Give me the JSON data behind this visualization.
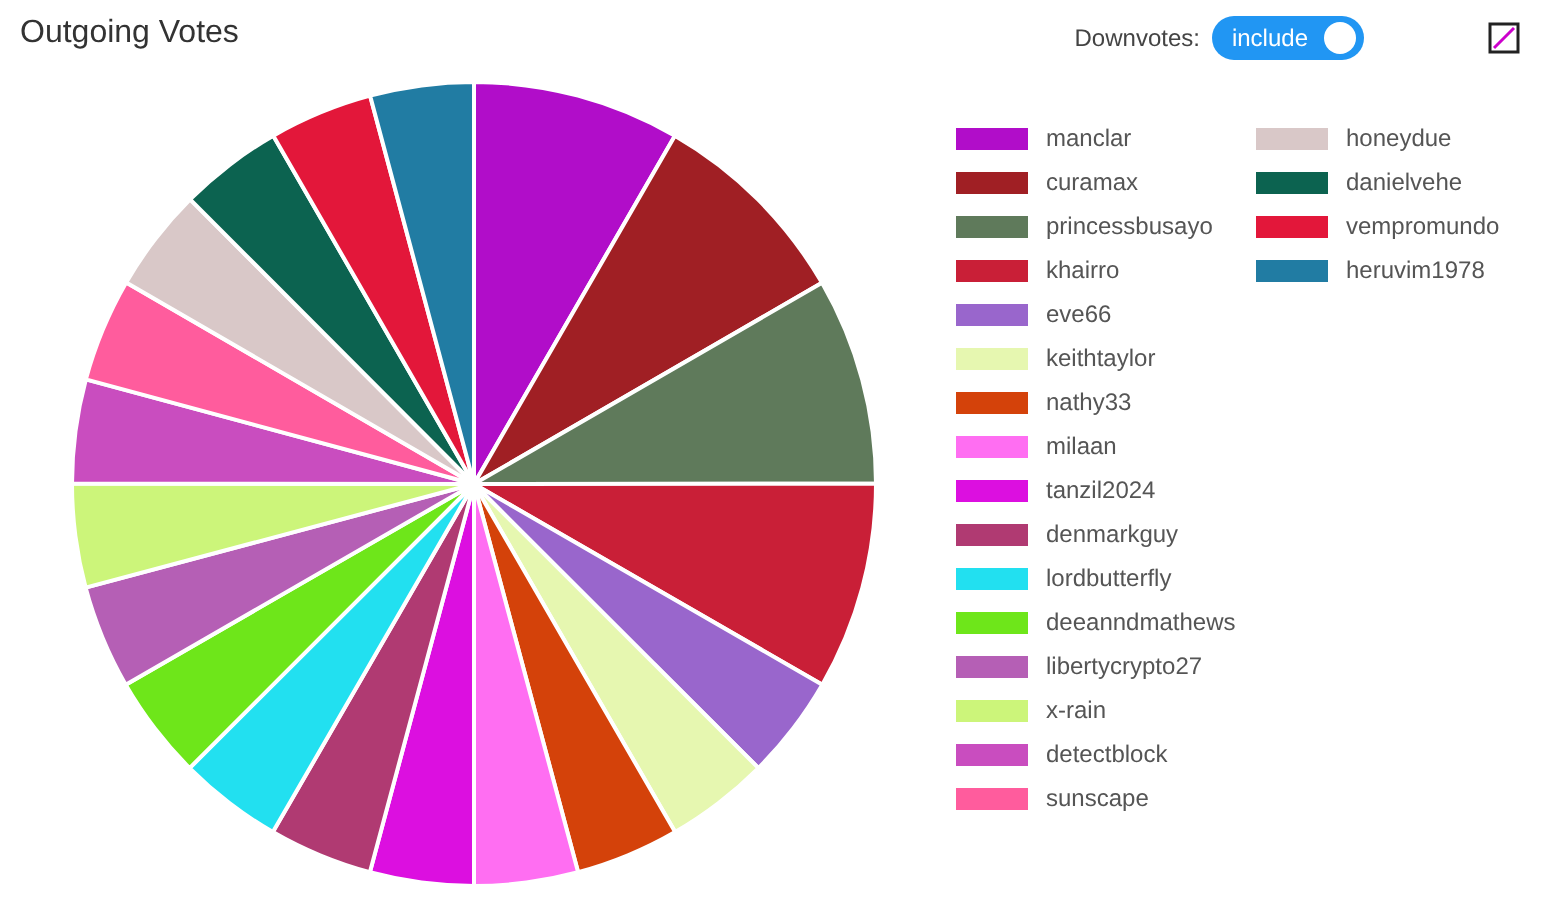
{
  "chart_data": {
    "type": "pie",
    "title": "Outgoing Votes",
    "categories": [
      "manclar",
      "curamax",
      "princessbusayo",
      "khairro",
      "eve66",
      "keithtaylor",
      "nathy33",
      "milaan",
      "tanzil2024",
      "denmarkguy",
      "lordbutterfly",
      "deeanndmathews",
      "libertycrypto27",
      "x-rain",
      "detectblock",
      "sunscape",
      "honeydue",
      "danielvehe",
      "vempromundo",
      "heruvim1978"
    ],
    "values": [
      8.33,
      8.33,
      8.33,
      8.33,
      4.17,
      4.17,
      4.17,
      4.17,
      4.17,
      4.17,
      4.17,
      4.17,
      4.17,
      4.17,
      4.17,
      4.17,
      4.16,
      4.16,
      4.16,
      4.16
    ],
    "colors": [
      "#b10dc9",
      "#a01f24",
      "#5f7a5b",
      "#c91f37",
      "#9966cc",
      "#e6f7b0",
      "#d4420a",
      "#ff6ef2",
      "#dc0fe0",
      "#b03a72",
      "#22e0f0",
      "#6ee61a",
      "#b55fb5",
      "#ccf57a",
      "#c94dbf",
      "#ff5c9d",
      "#d9c8c8",
      "#0c6350",
      "#e3173a",
      "#217ca3"
    ],
    "legend": "right",
    "annotations": [
      "Downvotes:",
      "include"
    ]
  }
}
